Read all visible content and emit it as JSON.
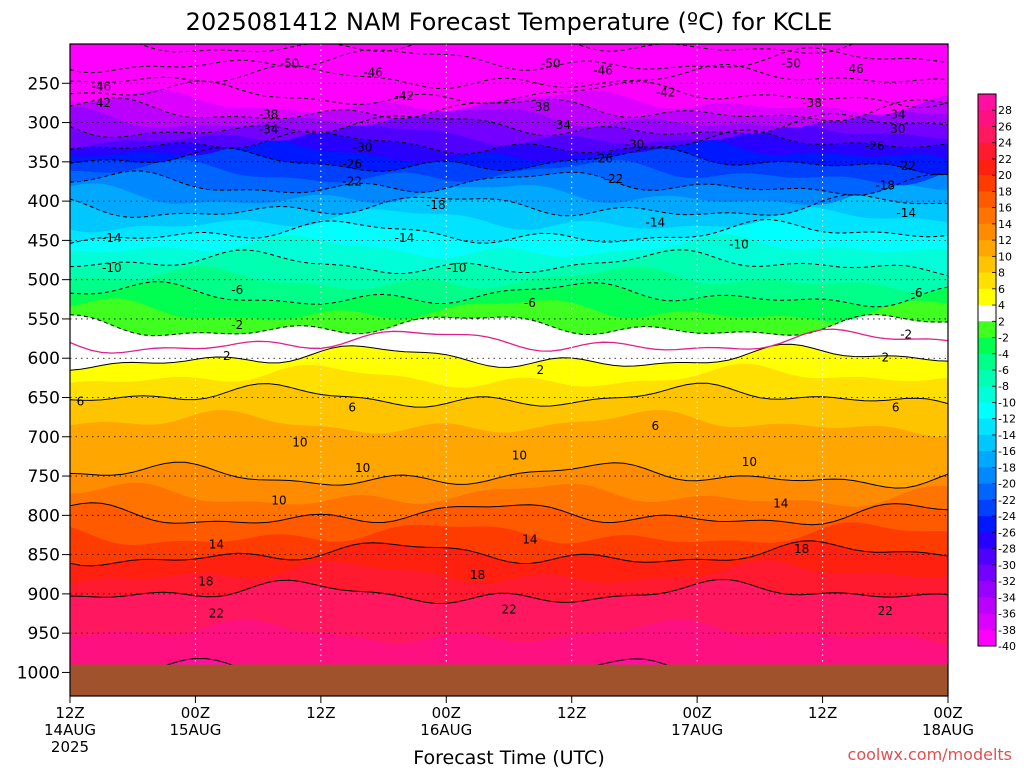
{
  "chart_data": {
    "type": "heatmap",
    "title": "2025081412 NAM Forecast Temperature (ºC) for KCLE",
    "xlabel": "Forecast Time (UTC)",
    "ylabel": "",
    "credit": "coolwx.com/modelts",
    "x_ticks": [
      {
        "hour": 0,
        "line1": "12Z",
        "line2": "14AUG",
        "line3": "2025"
      },
      {
        "hour": 12,
        "line1": "00Z",
        "line2": "15AUG",
        "line3": ""
      },
      {
        "hour": 24,
        "line1": "12Z",
        "line2": "",
        "line3": ""
      },
      {
        "hour": 36,
        "line1": "00Z",
        "line2": "16AUG",
        "line3": ""
      },
      {
        "hour": 48,
        "line1": "12Z",
        "line2": "",
        "line3": ""
      },
      {
        "hour": 60,
        "line1": "00Z",
        "line2": "17AUG",
        "line3": ""
      },
      {
        "hour": 72,
        "line1": "12Z",
        "line2": "",
        "line3": ""
      },
      {
        "hour": 84,
        "line1": "00Z",
        "line2": "18AUG",
        "line3": ""
      }
    ],
    "xlim": [
      0,
      84
    ],
    "y_pressure_ticks": [
      250,
      300,
      350,
      400,
      450,
      500,
      550,
      600,
      650,
      700,
      750,
      800,
      850,
      900,
      950,
      1000
    ],
    "ylim": [
      200,
      1030
    ],
    "ground_pressure": 990,
    "colorbar": {
      "labels": [
        28,
        26,
        24,
        22,
        20,
        18,
        16,
        14,
        12,
        10,
        8,
        6,
        4,
        2,
        -2,
        -4,
        -6,
        -8,
        -10,
        -12,
        -14,
        -16,
        -18,
        -20,
        -22,
        -24,
        -26,
        -28,
        -30,
        -32,
        -34,
        -36,
        -38,
        -40
      ],
      "bands": [
        {
          "min": 26,
          "max": 30,
          "color": "#ff10a0"
        },
        {
          "min": 24,
          "max": 26,
          "color": "#ff1080"
        },
        {
          "min": 22,
          "max": 24,
          "color": "#ff1860"
        },
        {
          "min": 20,
          "max": 22,
          "color": "#ff1a30"
        },
        {
          "min": 18,
          "max": 20,
          "color": "#ff2010"
        },
        {
          "min": 16,
          "max": 18,
          "color": "#ff3c00"
        },
        {
          "min": 14,
          "max": 16,
          "color": "#ff5a00"
        },
        {
          "min": 12,
          "max": 14,
          "color": "#ff7400"
        },
        {
          "min": 10,
          "max": 12,
          "color": "#ff8c00"
        },
        {
          "min": 8,
          "max": 10,
          "color": "#ffa600"
        },
        {
          "min": 6,
          "max": 8,
          "color": "#ffc400"
        },
        {
          "min": 4,
          "max": 6,
          "color": "#ffe000"
        },
        {
          "min": 2,
          "max": 4,
          "color": "#ffff00"
        },
        {
          "min": -2,
          "max": 2,
          "color": "#ffffff"
        },
        {
          "min": -4,
          "max": -2,
          "color": "#40ff20"
        },
        {
          "min": -6,
          "max": -4,
          "color": "#00ff50"
        },
        {
          "min": -8,
          "max": -6,
          "color": "#00ff88"
        },
        {
          "min": -10,
          "max": -8,
          "color": "#00ffb0"
        },
        {
          "min": -12,
          "max": -10,
          "color": "#00ffd8"
        },
        {
          "min": -14,
          "max": -12,
          "color": "#00ffff"
        },
        {
          "min": -16,
          "max": -14,
          "color": "#00e4ff"
        },
        {
          "min": -18,
          "max": -16,
          "color": "#00c8ff"
        },
        {
          "min": -20,
          "max": -18,
          "color": "#00a8ff"
        },
        {
          "min": -22,
          "max": -20,
          "color": "#0088ff"
        },
        {
          "min": -24,
          "max": -22,
          "color": "#0064ff"
        },
        {
          "min": -26,
          "max": -24,
          "color": "#0040ff"
        },
        {
          "min": -28,
          "max": -26,
          "color": "#0018ff"
        },
        {
          "min": -30,
          "max": -28,
          "color": "#2800ff"
        },
        {
          "min": -32,
          "max": -30,
          "color": "#5000ff"
        },
        {
          "min": -34,
          "max": -32,
          "color": "#7400ff"
        },
        {
          "min": -36,
          "max": -34,
          "color": "#9800ff"
        },
        {
          "min": -38,
          "max": -36,
          "color": "#bc00ff"
        },
        {
          "min": -40,
          "max": -38,
          "color": "#dc00ff"
        },
        {
          "min": -60,
          "max": -40,
          "color": "#ff00ff"
        }
      ]
    },
    "profile": {
      "levels": [
        200,
        250,
        300,
        350,
        400,
        450,
        500,
        550,
        600,
        650,
        700,
        750,
        800,
        850,
        900,
        950,
        1000
      ],
      "temps": [
        -54,
        -45,
        -35,
        -26,
        -19,
        -13,
        -8,
        -3,
        2,
        6,
        9,
        10,
        14,
        18,
        22,
        24,
        26
      ]
    },
    "contour_labels": [
      {
        "t": 21,
        "p": 225,
        "text": "-50"
      },
      {
        "t": 46,
        "p": 225,
        "text": "-50"
      },
      {
        "t": 69,
        "p": 225,
        "text": "-50"
      },
      {
        "t": 29,
        "p": 236,
        "text": "-46"
      },
      {
        "t": 51,
        "p": 234,
        "text": "-46"
      },
      {
        "t": 75,
        "p": 232,
        "text": "-46"
      },
      {
        "t": 3,
        "p": 254,
        "text": "-46"
      },
      {
        "t": 3,
        "p": 275,
        "text": "-42"
      },
      {
        "t": 32,
        "p": 266,
        "text": "-42"
      },
      {
        "t": 57,
        "p": 262,
        "text": "-42"
      },
      {
        "t": 19,
        "p": 290,
        "text": "-38"
      },
      {
        "t": 45,
        "p": 280,
        "text": "-38"
      },
      {
        "t": 71,
        "p": 275,
        "text": "-38"
      },
      {
        "t": 19,
        "p": 309,
        "text": "-34"
      },
      {
        "t": 47,
        "p": 303,
        "text": "-34"
      },
      {
        "t": 79,
        "p": 290,
        "text": "-34"
      },
      {
        "t": 28,
        "p": 332,
        "text": "-30"
      },
      {
        "t": 54,
        "p": 328,
        "text": "-30"
      },
      {
        "t": 79,
        "p": 308,
        "text": "-30"
      },
      {
        "t": 27,
        "p": 353,
        "text": "-26"
      },
      {
        "t": 51,
        "p": 346,
        "text": "-26"
      },
      {
        "t": 77,
        "p": 330,
        "text": "-26"
      },
      {
        "t": 27,
        "p": 375,
        "text": "-22"
      },
      {
        "t": 52,
        "p": 372,
        "text": "-22"
      },
      {
        "t": 80,
        "p": 355,
        "text": "-22"
      },
      {
        "t": 35,
        "p": 405,
        "text": "-18"
      },
      {
        "t": 78,
        "p": 380,
        "text": "-18"
      },
      {
        "t": 4,
        "p": 447,
        "text": "-14"
      },
      {
        "t": 32,
        "p": 447,
        "text": "-14"
      },
      {
        "t": 56,
        "p": 427,
        "text": "-14"
      },
      {
        "t": 80,
        "p": 415,
        "text": "-14"
      },
      {
        "t": 4,
        "p": 485,
        "text": "-10"
      },
      {
        "t": 37,
        "p": 485,
        "text": "-10"
      },
      {
        "t": 64,
        "p": 455,
        "text": "-10"
      },
      {
        "t": 16,
        "p": 513,
        "text": "-6"
      },
      {
        "t": 44,
        "p": 530,
        "text": "-6"
      },
      {
        "t": 81,
        "p": 517,
        "text": "-6"
      },
      {
        "t": 16,
        "p": 558,
        "text": "-2"
      },
      {
        "t": 80,
        "p": 570,
        "text": "-2"
      },
      {
        "t": 15,
        "p": 597,
        "text": "2"
      },
      {
        "t": 45,
        "p": 615,
        "text": "2"
      },
      {
        "t": 78,
        "p": 599,
        "text": "2"
      },
      {
        "t": 1,
        "p": 655,
        "text": "6"
      },
      {
        "t": 27,
        "p": 663,
        "text": "6"
      },
      {
        "t": 56,
        "p": 686,
        "text": "6"
      },
      {
        "t": 79,
        "p": 663,
        "text": "6"
      },
      {
        "t": 22,
        "p": 707,
        "text": "10"
      },
      {
        "t": 28,
        "p": 740,
        "text": "10"
      },
      {
        "t": 43,
        "p": 724,
        "text": "10"
      },
      {
        "t": 65,
        "p": 732,
        "text": "10"
      },
      {
        "t": 20,
        "p": 781,
        "text": "10"
      },
      {
        "t": 14,
        "p": 837,
        "text": "14"
      },
      {
        "t": 44,
        "p": 831,
        "text": "14"
      },
      {
        "t": 68,
        "p": 785,
        "text": "14"
      },
      {
        "t": 13,
        "p": 884,
        "text": "18"
      },
      {
        "t": 39,
        "p": 876,
        "text": "18"
      },
      {
        "t": 70,
        "p": 843,
        "text": "18"
      },
      {
        "t": 14,
        "p": 925,
        "text": "22"
      },
      {
        "t": 42,
        "p": 920,
        "text": "22"
      },
      {
        "t": 78,
        "p": 922,
        "text": "22"
      }
    ]
  }
}
